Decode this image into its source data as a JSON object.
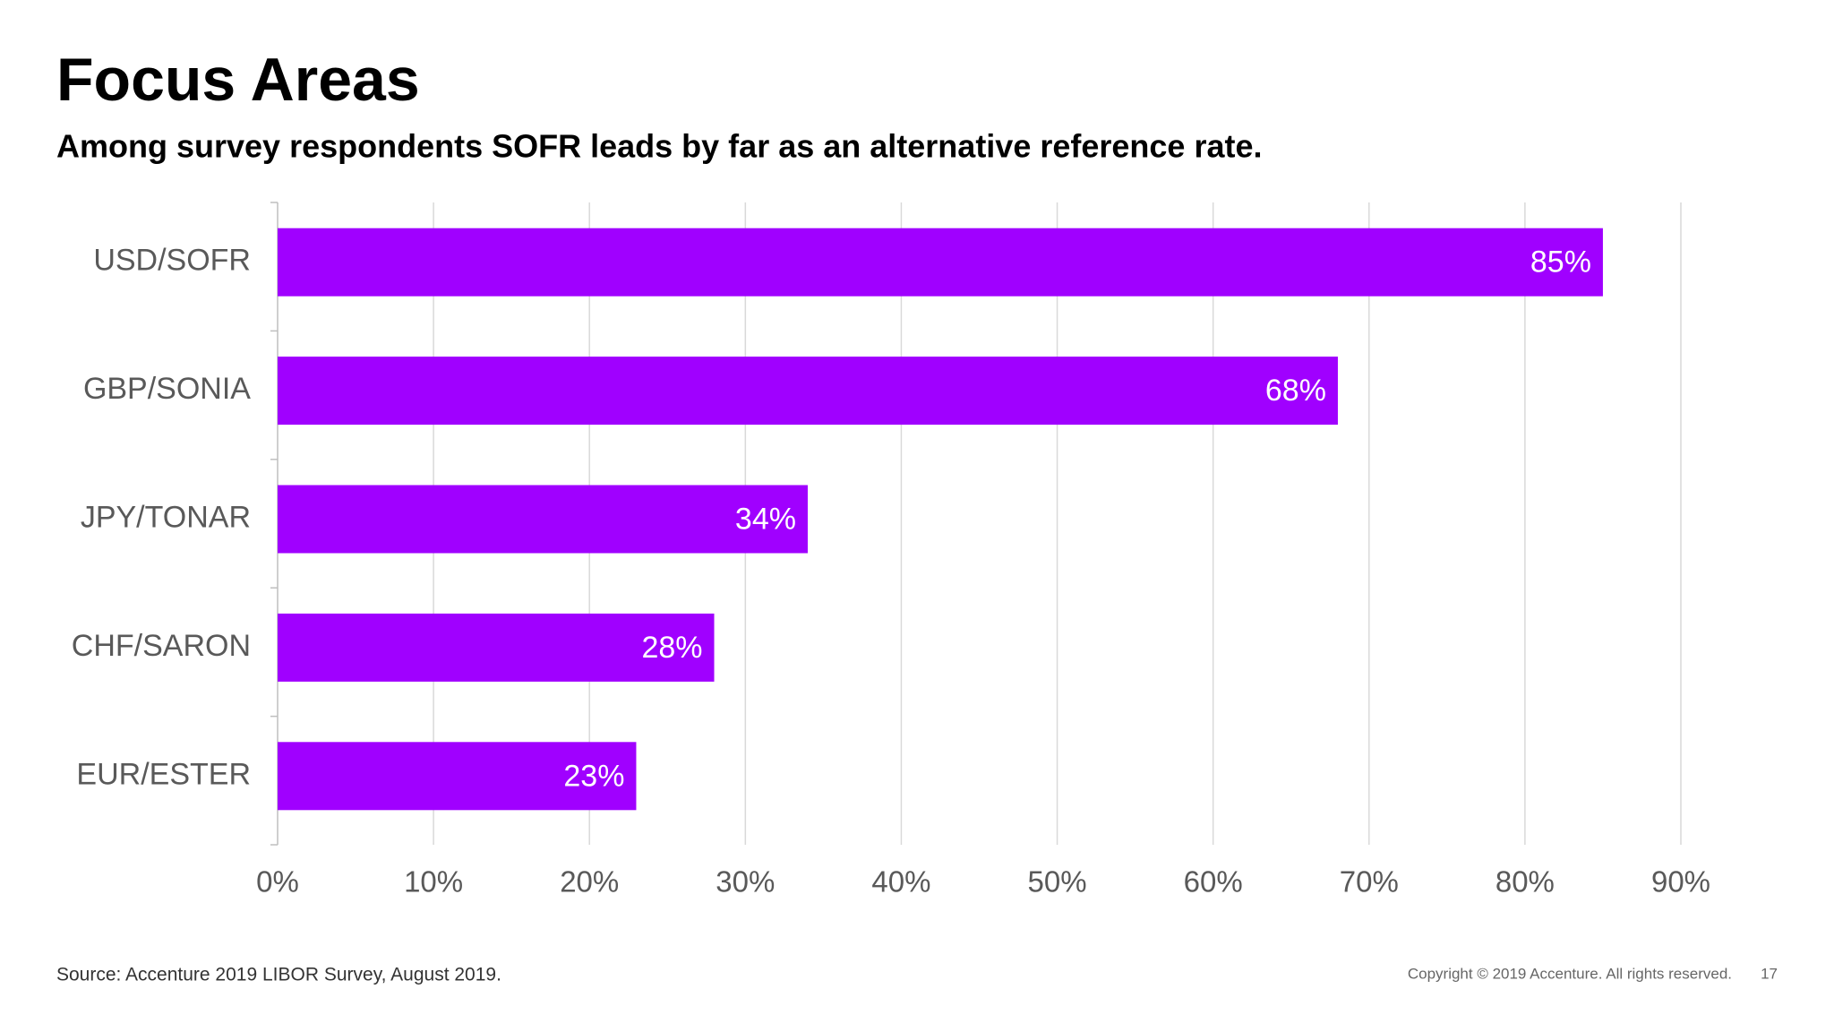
{
  "chart_data": {
    "type": "bar",
    "orientation": "horizontal",
    "title": "Focus Areas",
    "subtitle": "Among survey respondents SOFR leads by far as an alternative reference rate.",
    "categories": [
      "USD/SOFR",
      "GBP/SONIA",
      "JPY/TONAR",
      "CHF/SARON",
      "EUR/ESTER"
    ],
    "values": [
      85,
      68,
      34,
      28,
      23
    ],
    "value_labels": [
      "85%",
      "68%",
      "34%",
      "28%",
      "23%"
    ],
    "color": "#a000ff",
    "xlim": [
      0,
      90
    ],
    "xticks": [
      {
        "value": 0,
        "label": "0%"
      },
      {
        "value": 10,
        "label": "10%"
      },
      {
        "value": 20,
        "label": "20%"
      },
      {
        "value": 30,
        "label": "30%"
      },
      {
        "value": 40,
        "label": "40%"
      },
      {
        "value": 50,
        "label": "50%"
      },
      {
        "value": 60,
        "label": "60%"
      },
      {
        "value": 70,
        "label": "70%"
      },
      {
        "value": 80,
        "label": "80%"
      },
      {
        "value": 90,
        "label": "90%"
      }
    ],
    "grid": true
  },
  "footer": {
    "source": "Source: Accenture 2019 LIBOR Survey,  August 2019.",
    "copyright": "Copyright © 2019 Accenture. All rights reserved.",
    "page_number": "17"
  }
}
